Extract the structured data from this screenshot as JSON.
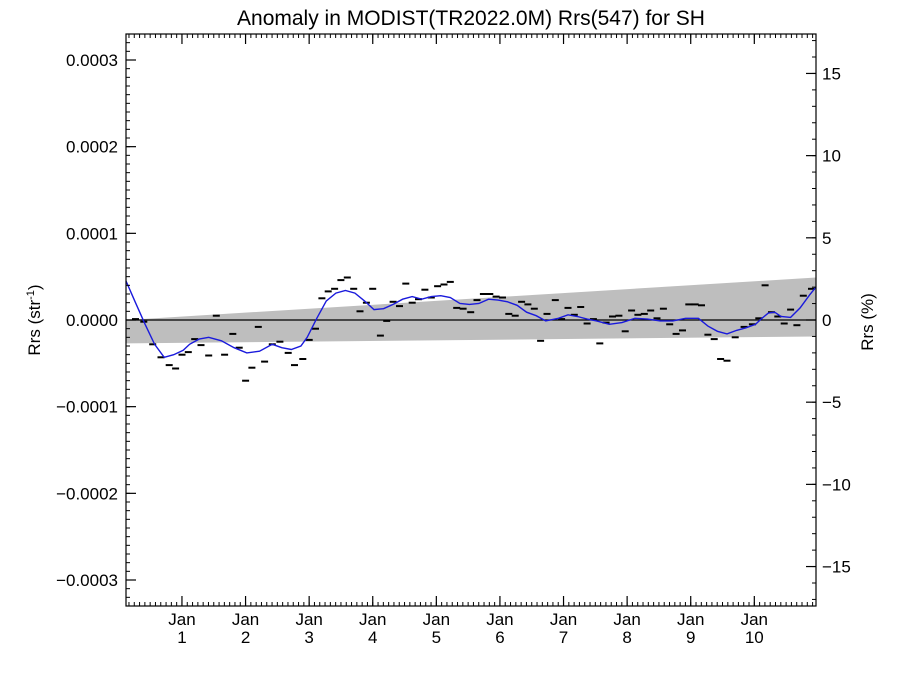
{
  "chart_data": {
    "type": "line",
    "title": "Anomaly in MODIST(TR2022.0M) Rrs(547) for SH",
    "ylabel_left": "Rrs (str",
    "ylabel_left_sup": "-1",
    "ylabel_left_close": ")",
    "ylabel_right": "Rrs (%)",
    "xlim": [
      0,
      10.85
    ],
    "ylim_left": [
      -0.00033,
      0.00033
    ],
    "ylim_right": [
      -17.4,
      17.4
    ],
    "left_ticks": [
      {
        "value": 0.0003,
        "label": "0.0003"
      },
      {
        "value": 0.0002,
        "label": "0.0002"
      },
      {
        "value": 0.0001,
        "label": "0.0001"
      },
      {
        "value": 0.0,
        "label": "0.0000"
      },
      {
        "value": -0.0001,
        "label": "−0.0001"
      },
      {
        "value": -0.0002,
        "label": "−0.0002"
      },
      {
        "value": -0.0003,
        "label": "−0.0003"
      }
    ],
    "right_ticks": [
      {
        "value": 15,
        "label": "15"
      },
      {
        "value": 10,
        "label": "10"
      },
      {
        "value": 5,
        "label": "5"
      },
      {
        "value": 0,
        "label": "0"
      },
      {
        "value": -5,
        "label": "−5"
      },
      {
        "value": -10,
        "label": "−10"
      },
      {
        "value": -15,
        "label": "−15"
      }
    ],
    "x_ticks": [
      {
        "value": 0.88,
        "month": "Jan",
        "year": "1"
      },
      {
        "value": 1.88,
        "month": "Jan",
        "year": "2"
      },
      {
        "value": 2.88,
        "month": "Jan",
        "year": "3"
      },
      {
        "value": 3.88,
        "month": "Jan",
        "year": "4"
      },
      {
        "value": 4.88,
        "month": "Jan",
        "year": "5"
      },
      {
        "value": 5.88,
        "month": "Jan",
        "year": "6"
      },
      {
        "value": 6.88,
        "month": "Jan",
        "year": "7"
      },
      {
        "value": 7.88,
        "month": "Jan",
        "year": "8"
      },
      {
        "value": 8.88,
        "month": "Jan",
        "year": "9"
      },
      {
        "value": 9.88,
        "month": "Jan",
        "year": "10"
      }
    ],
    "band": {
      "start_x": 0,
      "end_x": 10.85,
      "upper_start": 0.0,
      "upper_end": 4.9e-05,
      "lower_start": -2.7e-05,
      "lower_end": -1.9e-05,
      "color": "#bebebe"
    },
    "zero_line_color": "#000000",
    "smooth_series": {
      "color": "#1a1adc",
      "points": [
        [
          0.0,
          4.5e-05
        ],
        [
          0.15,
          2e-05
        ],
        [
          0.3,
          -5e-06
        ],
        [
          0.45,
          -2.8e-05
        ],
        [
          0.6,
          -4.3e-05
        ],
        [
          0.75,
          -4e-05
        ],
        [
          0.9,
          -3.5e-05
        ],
        [
          1.0,
          -2.8e-05
        ],
        [
          1.15,
          -2.2e-05
        ],
        [
          1.3,
          -2e-05
        ],
        [
          1.5,
          -2.4e-05
        ],
        [
          1.7,
          -3.2e-05
        ],
        [
          1.9,
          -3.8e-05
        ],
        [
          2.1,
          -3.6e-05
        ],
        [
          2.3,
          -2.8e-05
        ],
        [
          2.45,
          -3.2e-05
        ],
        [
          2.6,
          -3.4e-05
        ],
        [
          2.75,
          -3e-05
        ],
        [
          2.85,
          -2e-05
        ],
        [
          3.0,
          2e-06
        ],
        [
          3.15,
          2.2e-05
        ],
        [
          3.3,
          3.1e-05
        ],
        [
          3.45,
          3.4e-05
        ],
        [
          3.6,
          3.1e-05
        ],
        [
          3.75,
          2.2e-05
        ],
        [
          3.9,
          1.2e-05
        ],
        [
          4.05,
          1.3e-05
        ],
        [
          4.2,
          1.8e-05
        ],
        [
          4.35,
          2.4e-05
        ],
        [
          4.5,
          2.7e-05
        ],
        [
          4.65,
          2.4e-05
        ],
        [
          4.8,
          2.7e-05
        ],
        [
          4.95,
          2.8e-05
        ],
        [
          5.1,
          2.6e-05
        ],
        [
          5.25,
          1.9e-05
        ],
        [
          5.4,
          1.8e-05
        ],
        [
          5.55,
          1.9e-05
        ],
        [
          5.7,
          2.4e-05
        ],
        [
          5.85,
          2.3e-05
        ],
        [
          6.0,
          2.1e-05
        ],
        [
          6.15,
          1.7e-05
        ],
        [
          6.3,
          9e-06
        ],
        [
          6.45,
          5e-06
        ],
        [
          6.6,
          -1e-06
        ],
        [
          6.8,
          2e-06
        ],
        [
          6.95,
          6e-06
        ],
        [
          7.1,
          4e-06
        ],
        [
          7.25,
          1e-06
        ],
        [
          7.4,
          -1e-06
        ],
        [
          7.6,
          -5e-06
        ],
        [
          7.8,
          -3e-06
        ],
        [
          8.0,
          2e-06
        ],
        [
          8.2,
          1e-06
        ],
        [
          8.4,
          -1e-06
        ],
        [
          8.6,
          -1e-06
        ],
        [
          8.8,
          2e-06
        ],
        [
          9.0,
          2e-06
        ],
        [
          9.15,
          -7e-06
        ],
        [
          9.3,
          -1.3e-05
        ],
        [
          9.45,
          -1.6e-05
        ],
        [
          9.6,
          -1.2e-05
        ],
        [
          9.75,
          -9e-06
        ],
        [
          9.9,
          -5e-06
        ],
        [
          10.0,
          2e-06
        ],
        [
          10.1,
          8e-06
        ],
        [
          10.2,
          9e-06
        ],
        [
          10.3,
          4e-06
        ],
        [
          10.45,
          3e-06
        ],
        [
          10.6,
          1.4e-05
        ],
        [
          10.75,
          2.9e-05
        ],
        [
          10.85,
          3.8e-05
        ]
      ]
    },
    "monthly_points": [
      [
        0.15,
        1e-06
      ],
      [
        0.28,
        -2e-06
      ],
      [
        0.42,
        -2.8e-05
      ],
      [
        0.55,
        -4.3e-05
      ],
      [
        0.68,
        -5.2e-05
      ],
      [
        0.78,
        -5.6e-05
      ],
      [
        0.88,
        -4e-05
      ],
      [
        0.98,
        -3.7e-05
      ],
      [
        1.08,
        -2.2e-05
      ],
      [
        1.18,
        -2.9e-05
      ],
      [
        1.3,
        -4.1e-05
      ],
      [
        1.42,
        5e-06
      ],
      [
        1.55,
        -4e-05
      ],
      [
        1.68,
        -1.6e-05
      ],
      [
        1.78,
        -3.2e-05
      ],
      [
        1.88,
        -7e-05
      ],
      [
        1.98,
        -5.5e-05
      ],
      [
        2.08,
        -8e-06
      ],
      [
        2.18,
        -4.8e-05
      ],
      [
        2.3,
        -2.8e-05
      ],
      [
        2.42,
        -2.5e-05
      ],
      [
        2.55,
        -3.8e-05
      ],
      [
        2.65,
        -5.2e-05
      ],
      [
        2.78,
        -4.5e-05
      ],
      [
        2.88,
        -2.3e-05
      ],
      [
        2.98,
        -1e-05
      ],
      [
        3.08,
        2.5e-05
      ],
      [
        3.18,
        3.3e-05
      ],
      [
        3.28,
        3.6e-05
      ],
      [
        3.38,
        4.6e-05
      ],
      [
        3.48,
        4.9e-05
      ],
      [
        3.58,
        3.6e-05
      ],
      [
        3.68,
        1e-05
      ],
      [
        3.78,
        2e-05
      ],
      [
        3.88,
        3.6e-05
      ],
      [
        4.0,
        -1.8e-05
      ],
      [
        4.1,
        -1e-06
      ],
      [
        4.2,
        2.1e-05
      ],
      [
        4.3,
        1.6e-05
      ],
      [
        4.4,
        4.2e-05
      ],
      [
        4.5,
        2e-05
      ],
      [
        4.6,
        2.4e-05
      ],
      [
        4.7,
        3.5e-05
      ],
      [
        4.8,
        2.6e-05
      ],
      [
        4.9,
        3.9e-05
      ],
      [
        5.0,
        4.1e-05
      ],
      [
        5.1,
        4.4e-05
      ],
      [
        5.2,
        1.4e-05
      ],
      [
        5.3,
        1.3e-05
      ],
      [
        5.42,
        9e-06
      ],
      [
        5.52,
        2.3e-05
      ],
      [
        5.62,
        3e-05
      ],
      [
        5.72,
        3e-05
      ],
      [
        5.82,
        2.7e-05
      ],
      [
        5.92,
        2.6e-05
      ],
      [
        6.02,
        7e-06
      ],
      [
        6.12,
        5e-06
      ],
      [
        6.22,
        2.1e-05
      ],
      [
        6.32,
        1.8e-05
      ],
      [
        6.42,
        1.3e-05
      ],
      [
        6.52,
        -2.4e-05
      ],
      [
        6.62,
        7e-06
      ],
      [
        6.75,
        2.3e-05
      ],
      [
        6.85,
        1e-06
      ],
      [
        6.95,
        1.4e-05
      ],
      [
        7.05,
        6e-06
      ],
      [
        7.15,
        1.5e-05
      ],
      [
        7.25,
        -4e-06
      ],
      [
        7.35,
        1e-06
      ],
      [
        7.45,
        -2.7e-05
      ],
      [
        7.55,
        -3e-06
      ],
      [
        7.65,
        4e-06
      ],
      [
        7.75,
        5e-06
      ],
      [
        7.85,
        -1.3e-05
      ],
      [
        7.95,
        1.1e-05
      ],
      [
        8.05,
        6e-06
      ],
      [
        8.15,
        7e-06
      ],
      [
        8.25,
        1.1e-05
      ],
      [
        8.35,
        2e-06
      ],
      [
        8.45,
        1.3e-05
      ],
      [
        8.55,
        -5e-06
      ],
      [
        8.65,
        -1.6e-05
      ],
      [
        8.75,
        -1.2e-05
      ],
      [
        8.85,
        1.8e-05
      ],
      [
        8.95,
        1.8e-05
      ],
      [
        9.05,
        1.7e-05
      ],
      [
        9.15,
        -1.7e-05
      ],
      [
        9.25,
        -2.2e-05
      ],
      [
        9.35,
        -4.5e-05
      ],
      [
        9.45,
        -4.7e-05
      ],
      [
        9.58,
        -2e-05
      ],
      [
        9.72,
        -8e-06
      ],
      [
        9.85,
        -5e-06
      ],
      [
        9.95,
        2e-06
      ],
      [
        10.05,
        4e-05
      ],
      [
        10.15,
        9e-06
      ],
      [
        10.25,
        4e-06
      ],
      [
        10.35,
        -4e-06
      ],
      [
        10.45,
        1.2e-05
      ],
      [
        10.55,
        -6e-06
      ],
      [
        10.65,
        2.8e-05
      ],
      [
        10.78,
        3.6e-05
      ]
    ]
  }
}
